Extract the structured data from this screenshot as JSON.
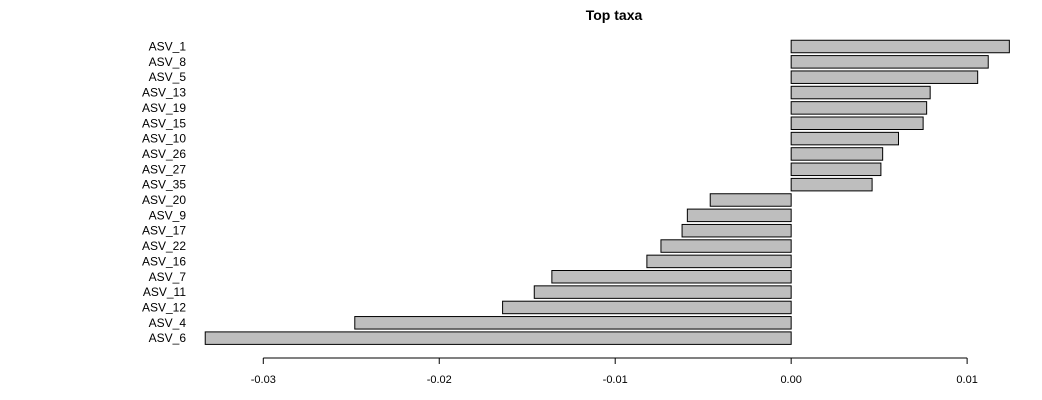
{
  "chart_data": {
    "type": "bar",
    "orientation": "horizontal",
    "title": "Top taxa",
    "xlabel": "",
    "ylabel": "",
    "categories": [
      "ASV_1",
      "ASV_8",
      "ASV_5",
      "ASV_13",
      "ASV_19",
      "ASV_15",
      "ASV_10",
      "ASV_26",
      "ASV_27",
      "ASV_35",
      "ASV_20",
      "ASV_9",
      "ASV_17",
      "ASV_22",
      "ASV_16",
      "ASV_7",
      "ASV_11",
      "ASV_12",
      "ASV_4",
      "ASV_6"
    ],
    "values": [
      0.0124,
      0.0112,
      0.0106,
      0.0079,
      0.0077,
      0.0075,
      0.0061,
      0.0052,
      0.0051,
      0.0046,
      -0.0046,
      -0.0059,
      -0.0062,
      -0.0074,
      -0.0082,
      -0.0136,
      -0.0146,
      -0.0164,
      -0.0248,
      -0.0333
    ],
    "xticks": [
      -0.03,
      -0.02,
      -0.01,
      0.0,
      0.01
    ],
    "xtick_labels": [
      "-0.03",
      "-0.02",
      "-0.01",
      "0.00",
      "0.01"
    ],
    "xlim": [
      -0.03354,
      0.01346
    ],
    "bar_color": "#bebebe",
    "grid": false,
    "legend": "none"
  }
}
